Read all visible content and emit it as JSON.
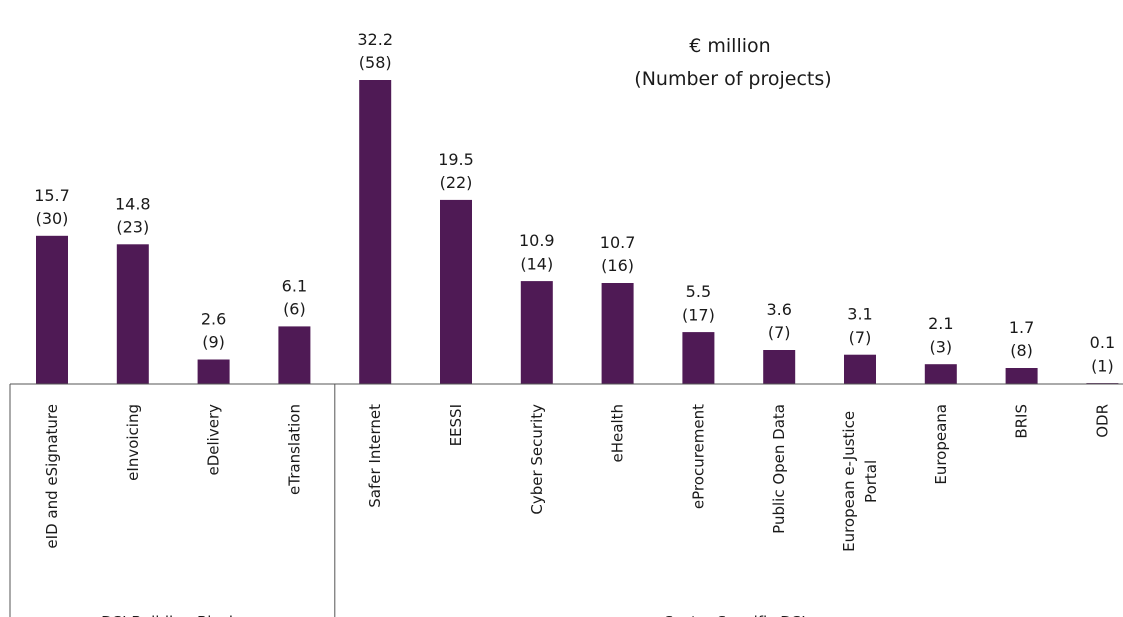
{
  "chart_data": {
    "type": "bar",
    "title": "",
    "subtitle": [
      "€ million",
      "(Number of projects)"
    ],
    "xlabel": "",
    "ylabel": "",
    "ylim": [
      0,
      32.2
    ],
    "grid": false,
    "legend": "none",
    "categories": [
      "eID and eSignature",
      "eInvoicing",
      "eDelivery",
      "eTranslation",
      "Safer Internet",
      "EESSI",
      "Cyber Security",
      "eHealth",
      "eProcurement",
      "Public Open Data",
      "European e-Justice Portal",
      "Europeana",
      "BRIS",
      "ODR"
    ],
    "category_label_lines": [
      [
        "eID and eSignature"
      ],
      [
        "eInvoicing"
      ],
      [
        "eDelivery"
      ],
      [
        "eTranslation"
      ],
      [
        "Safer Internet"
      ],
      [
        "EESSI"
      ],
      [
        "Cyber Security"
      ],
      [
        "eHealth"
      ],
      [
        "eProcurement"
      ],
      [
        "Public Open Data"
      ],
      [
        "European e-Justice",
        "Portal"
      ],
      [
        "Europeana"
      ],
      [
        "BRIS"
      ],
      [
        "ODR"
      ]
    ],
    "series": [
      {
        "values": [
          15.7,
          14.8,
          2.6,
          6.1,
          32.2,
          19.5,
          10.9,
          10.7,
          5.5,
          3.6,
          3.1,
          2.1,
          1.7,
          0.1
        ],
        "projects": [
          30,
          23,
          9,
          6,
          58,
          22,
          14,
          16,
          17,
          7,
          7,
          3,
          8,
          1
        ]
      }
    ],
    "value_labels": [
      "15.7",
      "14.8",
      "2.6",
      "6.1",
      "32.2",
      "19.5",
      "10.9",
      "10.7",
      "5.5",
      "3.6",
      "3.1",
      "2.1",
      "1.7",
      "0.1"
    ],
    "project_labels": [
      "(30)",
      "(23)",
      "(9)",
      "(6)",
      "(58)",
      "(22)",
      "(14)",
      "(16)",
      "(17)",
      "(7)",
      "(7)",
      "(3)",
      "(8)",
      "(1)"
    ],
    "groups": [
      {
        "label": "DSI Building Blocks",
        "count": 4
      },
      {
        "label": "Sector Specific DSIs",
        "count": 10
      }
    ],
    "bar_color": "#4f1a55"
  }
}
